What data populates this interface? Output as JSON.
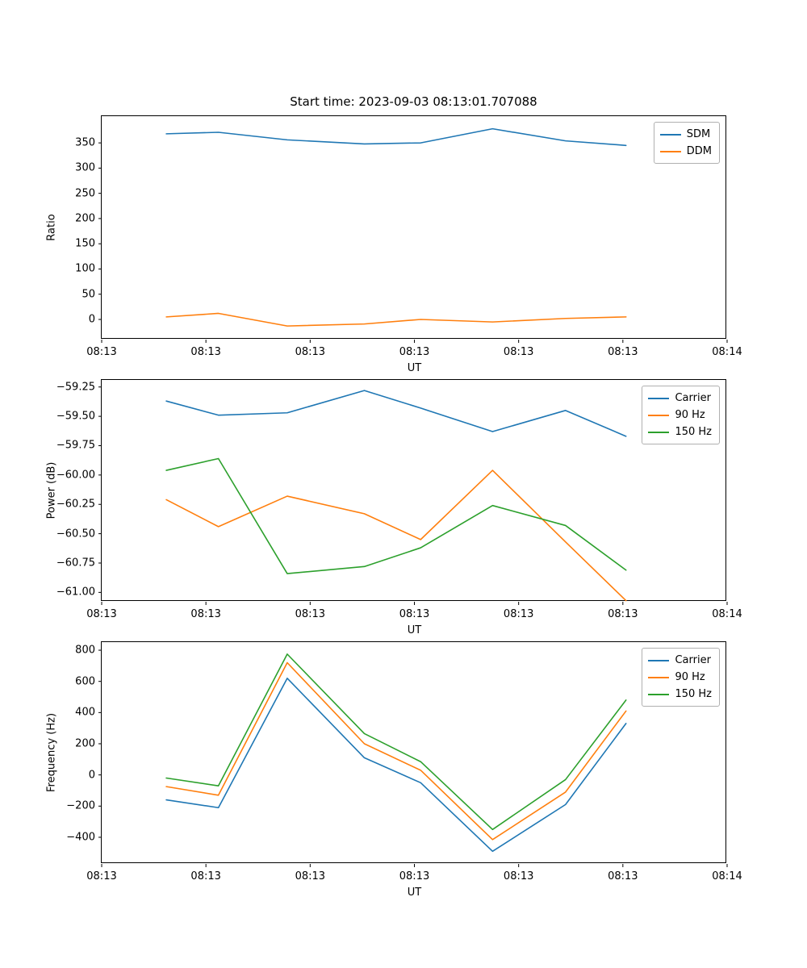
{
  "figure": {
    "title": "Start time: 2023-09-03 08:13:01.707088"
  },
  "colors": {
    "blue": "#1f77b4",
    "orange": "#ff7f0e",
    "green": "#2ca02c",
    "axis": "#000000",
    "legend_border": "#b0b0b0"
  },
  "chart_data": [
    {
      "type": "line",
      "title": "Start time: 2023-09-03 08:13:01.707088",
      "xlabel": "UT",
      "ylabel": "Ratio",
      "grid": false,
      "legend_position": "upper right",
      "xlim": [
        0,
        6
      ],
      "ylim": [
        -40,
        403
      ],
      "x_ticks": [
        0,
        1,
        2,
        3,
        4,
        5,
        6
      ],
      "x_tick_labels": [
        "08:13",
        "08:13",
        "08:13",
        "08:13",
        "08:13",
        "08:13",
        "08:14"
      ],
      "y_ticks": [
        0,
        50,
        100,
        150,
        200,
        250,
        300,
        350
      ],
      "y_tick_labels": [
        "0",
        "50",
        "100",
        "150",
        "200",
        "250",
        "300",
        "350"
      ],
      "x": [
        0.62,
        1.12,
        1.78,
        2.52,
        3.06,
        3.75,
        4.45,
        5.03
      ],
      "series": [
        {
          "name": "SDM",
          "color": "#1f77b4",
          "values": [
            368,
            371,
            356,
            348,
            350,
            378,
            354,
            345
          ]
        },
        {
          "name": "DDM",
          "color": "#ff7f0e",
          "values": [
            5,
            12,
            -13,
            -9,
            0,
            -5,
            2,
            5
          ]
        }
      ]
    },
    {
      "type": "line",
      "title": "",
      "xlabel": "UT",
      "ylabel": "Power (dB)",
      "grid": false,
      "legend_position": "upper right",
      "xlim": [
        0,
        6
      ],
      "ylim": [
        -61.08,
        -59.19
      ],
      "x_ticks": [
        0,
        1,
        2,
        3,
        4,
        5,
        6
      ],
      "x_tick_labels": [
        "08:13",
        "08:13",
        "08:13",
        "08:13",
        "08:13",
        "08:13",
        "08:14"
      ],
      "y_ticks": [
        -61.0,
        -60.75,
        -60.5,
        -60.25,
        -60.0,
        -59.75,
        -59.5,
        -59.25
      ],
      "y_tick_labels": [
        "−61.00",
        "−60.75",
        "−60.50",
        "−60.25",
        "−60.00",
        "−59.75",
        "−59.50",
        "−59.25"
      ],
      "x": [
        0.62,
        1.12,
        1.78,
        2.52,
        3.06,
        3.75,
        4.45,
        5.03
      ],
      "series": [
        {
          "name": "Carrier",
          "color": "#1f77b4",
          "values": [
            -59.37,
            -59.49,
            -59.47,
            -59.28,
            -59.43,
            -59.63,
            -59.45,
            -59.67
          ]
        },
        {
          "name": "90 Hz",
          "color": "#ff7f0e",
          "values": [
            -60.21,
            -60.44,
            -60.18,
            -60.33,
            -60.55,
            -59.96,
            -60.57,
            -61.07
          ]
        },
        {
          "name": "150 Hz",
          "color": "#2ca02c",
          "values": [
            -59.96,
            -59.86,
            -60.84,
            -60.78,
            -60.62,
            -60.26,
            -60.43,
            -60.81
          ]
        }
      ]
    },
    {
      "type": "line",
      "title": "",
      "xlabel": "UT",
      "ylabel": "Frequency (Hz)",
      "grid": false,
      "legend_position": "upper right",
      "xlim": [
        0,
        6
      ],
      "ylim": [
        -571,
        852
      ],
      "x_ticks": [
        0,
        1,
        2,
        3,
        4,
        5,
        6
      ],
      "x_tick_labels": [
        "08:13",
        "08:13",
        "08:13",
        "08:13",
        "08:13",
        "08:13",
        "08:14"
      ],
      "y_ticks": [
        -400,
        -200,
        0,
        200,
        400,
        600,
        800
      ],
      "y_tick_labels": [
        "−400",
        "−200",
        "0",
        "200",
        "400",
        "600",
        "800"
      ],
      "x": [
        0.62,
        1.12,
        1.78,
        2.52,
        3.06,
        3.75,
        4.45,
        5.03
      ],
      "series": [
        {
          "name": "Carrier",
          "color": "#1f77b4",
          "values": [
            -160,
            -210,
            620,
            110,
            -50,
            -490,
            -190,
            330
          ]
        },
        {
          "name": "90 Hz",
          "color": "#ff7f0e",
          "values": [
            -75,
            -130,
            720,
            200,
            30,
            -415,
            -110,
            410
          ]
        },
        {
          "name": "150 Hz",
          "color": "#2ca02c",
          "values": [
            -20,
            -70,
            775,
            265,
            85,
            -350,
            -30,
            480
          ]
        }
      ]
    }
  ]
}
